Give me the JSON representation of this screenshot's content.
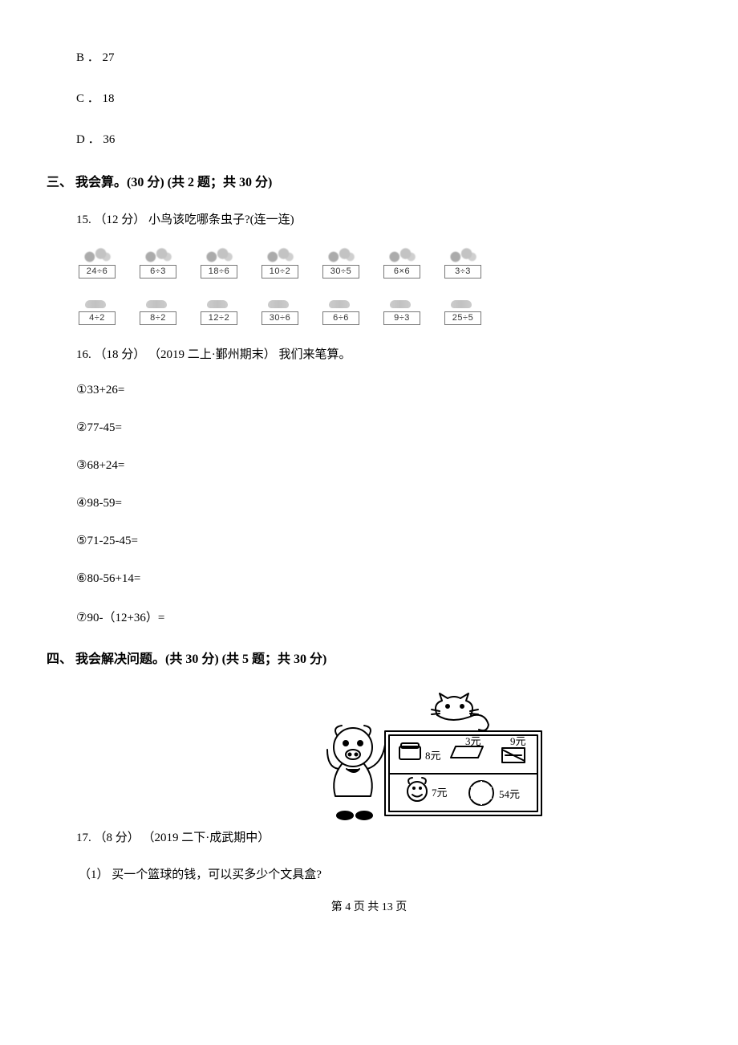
{
  "options": {
    "b": "B ． 27",
    "c": "C ． 18",
    "d": "D ． 36"
  },
  "section3": {
    "heading": "三、 我会算。(30 分)  (共 2 题；共 30 分)",
    "q15": {
      "text": "15.  （12 分）  小鸟该吃哪条虫子?(连一连)",
      "birds": [
        {
          "label": "24÷6"
        },
        {
          "label": "6÷3"
        },
        {
          "label": "18÷6"
        },
        {
          "label": "10÷2"
        },
        {
          "label": "30÷5"
        },
        {
          "label": "6×6"
        },
        {
          "label": "3÷3"
        }
      ],
      "bugs": [
        {
          "label": "4÷2"
        },
        {
          "label": "8÷2"
        },
        {
          "label": "12÷2"
        },
        {
          "label": "30÷6"
        },
        {
          "label": "6÷6"
        },
        {
          "label": "9÷3"
        },
        {
          "label": "25÷5"
        }
      ]
    },
    "q16": {
      "text": "16.  （18 分） （2019 二上·鄞州期末） 我们来笔算。",
      "items": [
        "①33+26=",
        "②77-45=",
        "③68+24=",
        "④98-59=",
        "⑤71-25-45=",
        "⑥80-56+14=",
        "⑦90-（12+36）="
      ]
    }
  },
  "section4": {
    "heading": "四、 我会解决问题。(共 30 分)  (共 5 题；共 30 分)",
    "q17": {
      "line": "17.  （8 分） （2019 二下·成武期中）",
      "sub1": "（1） 买一个篮球的钱，可以买多少个文具盒?",
      "prices": {
        "pencilcase": "8元",
        "eraser": "3元",
        "notebook": "9元",
        "doll": "7元",
        "basketball": "54元"
      }
    }
  },
  "footer": "第 4 页 共 13 页"
}
